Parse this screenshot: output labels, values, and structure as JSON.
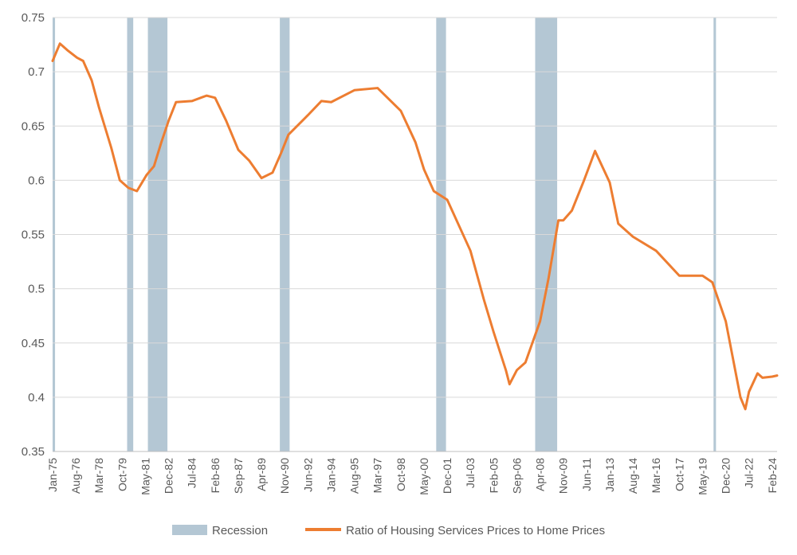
{
  "chart_data": {
    "type": "line",
    "x_start": "Jan-75",
    "x_end": "Jun-24",
    "ylim": [
      0.35,
      0.75
    ],
    "yticks": [
      "0.35",
      "0.4",
      "0.45",
      "0.5",
      "0.55",
      "0.6",
      "0.65",
      "0.7",
      "0.75"
    ],
    "xticks": [
      "Jan-75",
      "Aug-76",
      "Mar-78",
      "Oct-79",
      "May-81",
      "Dec-82",
      "Jul-84",
      "Feb-86",
      "Sep-87",
      "Apr-89",
      "Nov-90",
      "Jun-92",
      "Jan-94",
      "Aug-95",
      "Mar-97",
      "Oct-98",
      "May-00",
      "Dec-01",
      "Jul-03",
      "Feb-05",
      "Sep-06",
      "Apr-08",
      "Nov-09",
      "Jun-11",
      "Jan-13",
      "Aug-14",
      "Mar-16",
      "Oct-17",
      "May-19",
      "Dec-20",
      "Jul-22",
      "Feb-24"
    ],
    "grid": true,
    "legend_position": "bottom",
    "series": [
      {
        "name": "Ratio of Housing Services Prices to Home Prices",
        "color": "#ED7D31",
        "points": [
          [
            "Jan-75",
            0.71
          ],
          [
            "Jul-75",
            0.726
          ],
          [
            "Jan-76",
            0.72
          ],
          [
            "Sep-76",
            0.713
          ],
          [
            "Feb-77",
            0.71
          ],
          [
            "Sep-77",
            0.692
          ],
          [
            "Mar-78",
            0.667
          ],
          [
            "Jan-79",
            0.63
          ],
          [
            "Aug-79",
            0.6
          ],
          [
            "Mar-80",
            0.593
          ],
          [
            "Oct-80",
            0.59
          ],
          [
            "Jun-81",
            0.605
          ],
          [
            "Dec-81",
            0.613
          ],
          [
            "Jun-82",
            0.635
          ],
          [
            "Dec-82",
            0.655
          ],
          [
            "Jun-83",
            0.672
          ],
          [
            "Jul-84",
            0.673
          ],
          [
            "Jul-85",
            0.678
          ],
          [
            "Feb-86",
            0.676
          ],
          [
            "Nov-86",
            0.655
          ],
          [
            "Sep-87",
            0.628
          ],
          [
            "Jun-88",
            0.618
          ],
          [
            "Apr-89",
            0.602
          ],
          [
            "Jan-90",
            0.607
          ],
          [
            "Aug-90",
            0.625
          ],
          [
            "Feb-91",
            0.642
          ],
          [
            "Jun-92",
            0.66
          ],
          [
            "May-93",
            0.673
          ],
          [
            "Jan-94",
            0.672
          ],
          [
            "Aug-95",
            0.683
          ],
          [
            "Mar-97",
            0.685
          ],
          [
            "Oct-98",
            0.664
          ],
          [
            "Oct-99",
            0.635
          ],
          [
            "May-00",
            0.61
          ],
          [
            "Jan-01",
            0.59
          ],
          [
            "Dec-01",
            0.582
          ],
          [
            "Jul-03",
            0.535
          ],
          [
            "Jun-04",
            0.49
          ],
          [
            "Feb-05",
            0.46
          ],
          [
            "Dec-05",
            0.425
          ],
          [
            "Mar-06",
            0.412
          ],
          [
            "Sep-06",
            0.425
          ],
          [
            "Apr-07",
            0.432
          ],
          [
            "Apr-08",
            0.47
          ],
          [
            "Nov-08",
            0.51
          ],
          [
            "Jul-09",
            0.563
          ],
          [
            "Nov-09",
            0.563
          ],
          [
            "Jun-10",
            0.572
          ],
          [
            "Apr-11",
            0.6
          ],
          [
            "Jan-12",
            0.627
          ],
          [
            "Jan-13",
            0.598
          ],
          [
            "Aug-13",
            0.56
          ],
          [
            "Aug-14",
            0.548
          ],
          [
            "Mar-16",
            0.535
          ],
          [
            "Oct-17",
            0.512
          ],
          [
            "May-19",
            0.512
          ],
          [
            "Jan-20",
            0.506
          ],
          [
            "Dec-20",
            0.47
          ],
          [
            "Dec-21",
            0.4
          ],
          [
            "Apr-22",
            0.389
          ],
          [
            "Jul-22",
            0.405
          ],
          [
            "Feb-23",
            0.422
          ],
          [
            "Jun-23",
            0.418
          ],
          [
            "Feb-24",
            0.419
          ],
          [
            "Jun-24",
            0.42
          ]
        ]
      }
    ],
    "recessions": {
      "name": "Recession",
      "color": "#B4C7D4",
      "periods": [
        [
          "Jan-75",
          "Mar-75"
        ],
        [
          "Feb-80",
          "Jul-80"
        ],
        [
          "Jul-81",
          "Nov-82"
        ],
        [
          "Jul-90",
          "Mar-91"
        ],
        [
          "Mar-01",
          "Nov-01"
        ],
        [
          "Dec-07",
          "Jun-09"
        ],
        [
          "Feb-20",
          "Apr-20"
        ]
      ]
    }
  }
}
